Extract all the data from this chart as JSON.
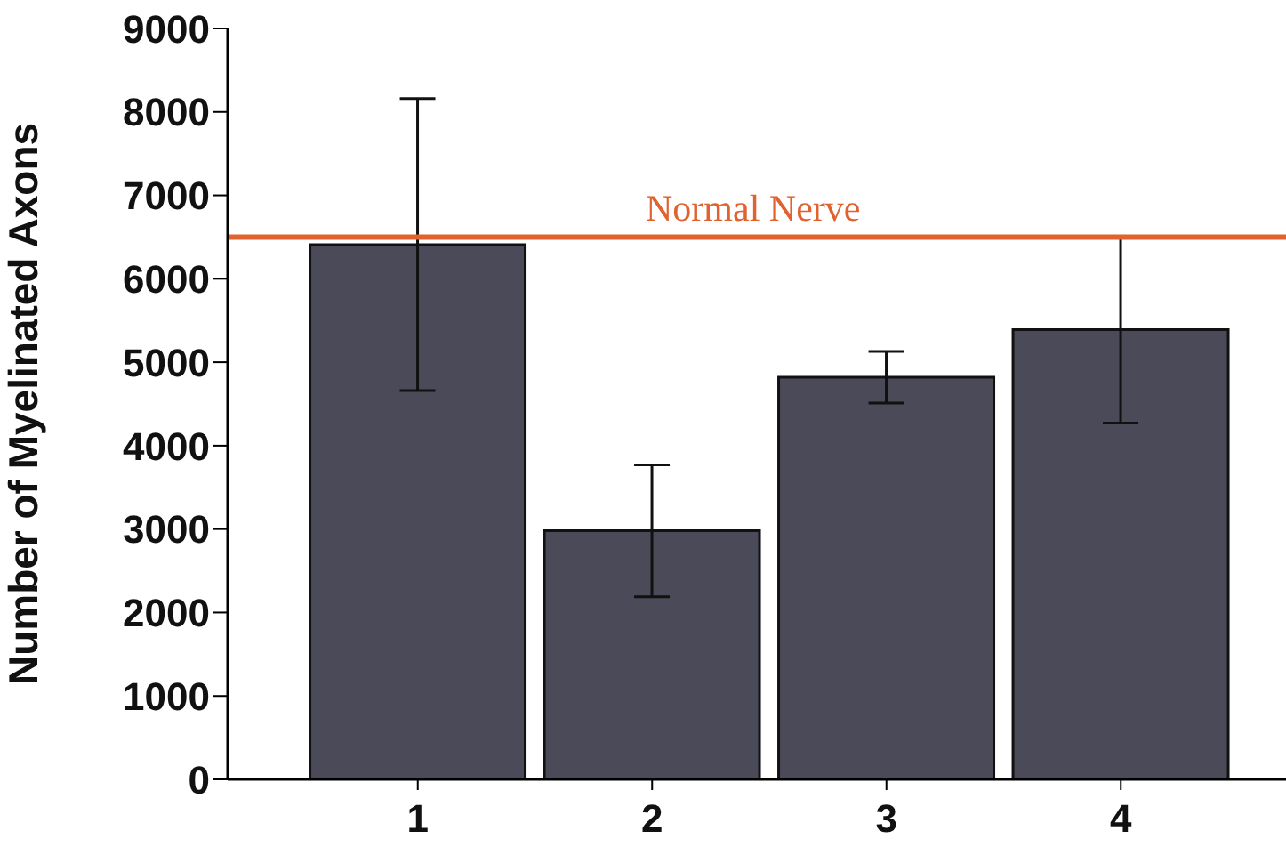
{
  "chart_data": {
    "type": "bar",
    "ylabel": "Number of Myelinated Axons",
    "categories": [
      "1",
      "2",
      "3",
      "4"
    ],
    "values": [
      6410,
      2980,
      4820,
      5390
    ],
    "errors": [
      1750,
      790,
      310,
      1120
    ],
    "color": "#4a4a58",
    "ylim": [
      0,
      9000
    ],
    "yticks": [
      0,
      1000,
      2000,
      3000,
      4000,
      5000,
      6000,
      7000,
      8000,
      9000
    ],
    "ref_lines": [
      {
        "axis": "y",
        "value": 6500,
        "label": "Normal Nerve",
        "color": "#e0622f"
      }
    ]
  }
}
